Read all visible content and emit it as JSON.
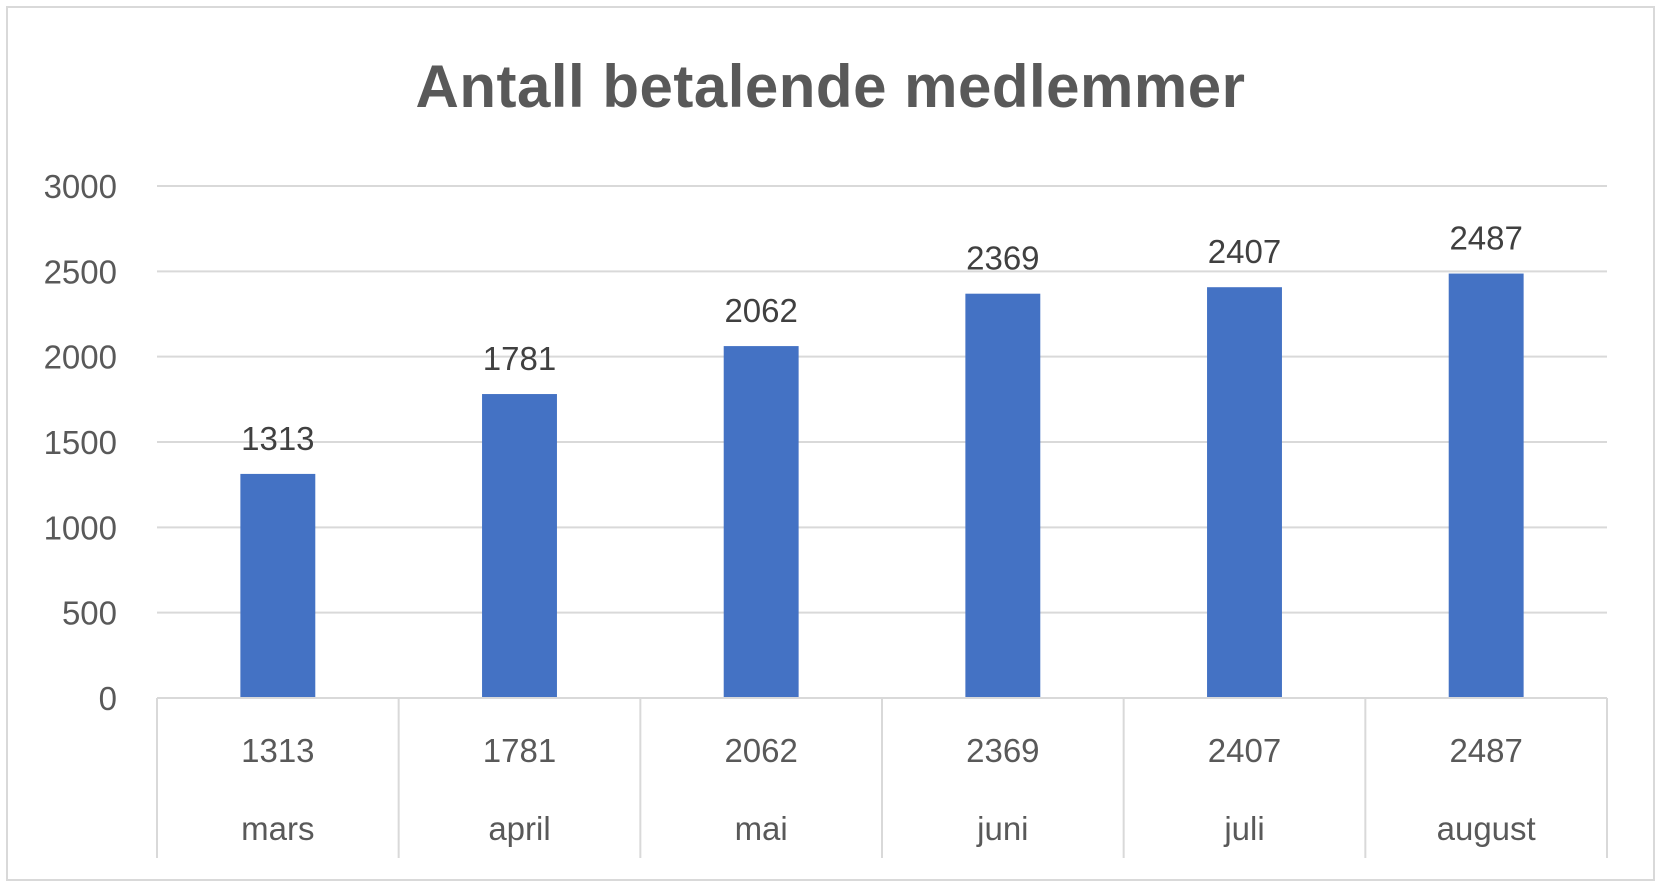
{
  "chart_data": {
    "type": "bar",
    "title": "Antall betalende medlemmer",
    "categories": [
      "mars",
      "april",
      "mai",
      "juni",
      "juli",
      "august"
    ],
    "series": [
      {
        "values": [
          1313,
          1781,
          2062,
          2369,
          2407,
          2487
        ]
      }
    ],
    "data_table_row": [
      "1313",
      "1781",
      "2062",
      "2369",
      "2407",
      "2487"
    ],
    "ylim": [
      0,
      3000
    ],
    "yticks": [
      0,
      500,
      1000,
      1500,
      2000,
      2500,
      3000
    ],
    "grid": true,
    "legend": "none",
    "bar_color": "#4472c4",
    "grid_color": "#d9d9d9"
  }
}
